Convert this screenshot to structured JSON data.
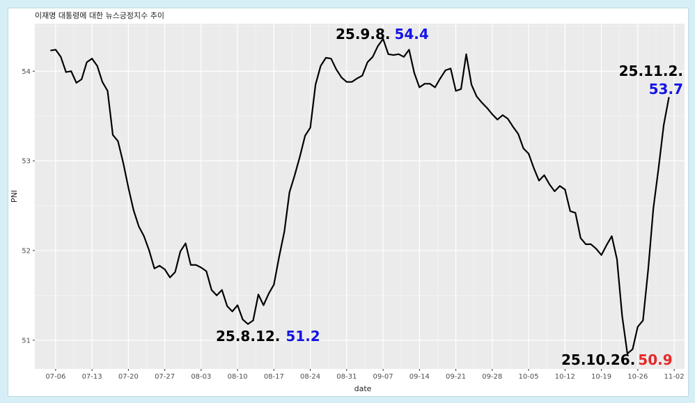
{
  "chart_data": {
    "type": "line",
    "title": "이재명 대통령에 대한 뉴스긍정지수 추이",
    "xlabel": "date",
    "ylabel": "PNI",
    "x_start": "2025-07-05",
    "x_end": "2025-11-02",
    "xlim": [
      "2025-07-02",
      "2025-11-04"
    ],
    "ylim": [
      50.68,
      54.53
    ],
    "y_ticks": [
      "51",
      "52",
      "53",
      "54"
    ],
    "x_ticks": [
      "07-06",
      "07-13",
      "07-20",
      "07-27",
      "08-03",
      "08-10",
      "08-17",
      "08-24",
      "08-31",
      "09-07",
      "09-14",
      "09-21",
      "09-28",
      "10-05",
      "10-12",
      "10-19",
      "10-26",
      "11-02"
    ],
    "grid": true,
    "line_color": "#000000",
    "values": [
      54.23,
      54.24,
      54.16,
      53.99,
      54.0,
      53.87,
      53.91,
      54.1,
      54.14,
      54.06,
      53.88,
      53.78,
      53.29,
      53.22,
      52.98,
      52.7,
      52.45,
      52.27,
      52.16,
      52.0,
      51.8,
      51.83,
      51.79,
      51.7,
      51.76,
      51.99,
      52.08,
      51.84,
      51.84,
      51.81,
      51.77,
      51.56,
      51.5,
      51.56,
      51.38,
      51.32,
      51.39,
      51.23,
      51.18,
      51.22,
      51.51,
      51.39,
      51.52,
      51.62,
      51.93,
      52.21,
      52.65,
      52.84,
      53.05,
      53.28,
      53.37,
      53.85,
      54.06,
      54.15,
      54.14,
      54.02,
      53.93,
      53.88,
      53.88,
      53.92,
      53.95,
      54.1,
      54.16,
      54.28,
      54.36,
      54.19,
      54.18,
      54.19,
      54.16,
      54.24,
      53.98,
      53.82,
      53.86,
      53.86,
      53.82,
      53.92,
      54.01,
      54.03,
      53.78,
      53.8,
      54.19,
      53.85,
      53.72,
      53.65,
      53.59,
      53.52,
      53.46,
      53.51,
      53.47,
      53.38,
      53.3,
      53.14,
      53.08,
      52.92,
      52.78,
      52.84,
      52.74,
      52.66,
      52.72,
      52.68,
      52.44,
      52.42,
      52.14,
      52.07,
      52.07,
      52.02,
      51.95,
      52.06,
      52.16,
      51.9,
      51.27,
      50.85,
      50.9,
      51.15,
      51.22,
      51.79,
      52.47,
      52.92,
      53.4,
      53.71
    ],
    "annotations": [
      {
        "date_text": "25.8.12.",
        "value_text": "51.2",
        "value_color": "#1414e6"
      },
      {
        "date_text": "25.9.8.",
        "value_text": "54.4",
        "value_color": "#1414e6"
      },
      {
        "date_text": "25.10.26.",
        "value_text": "50.9",
        "value_color": "#e62828"
      },
      {
        "date_text": "25.11.2.",
        "value_text": "53.7",
        "value_color": "#1414e6"
      }
    ]
  }
}
